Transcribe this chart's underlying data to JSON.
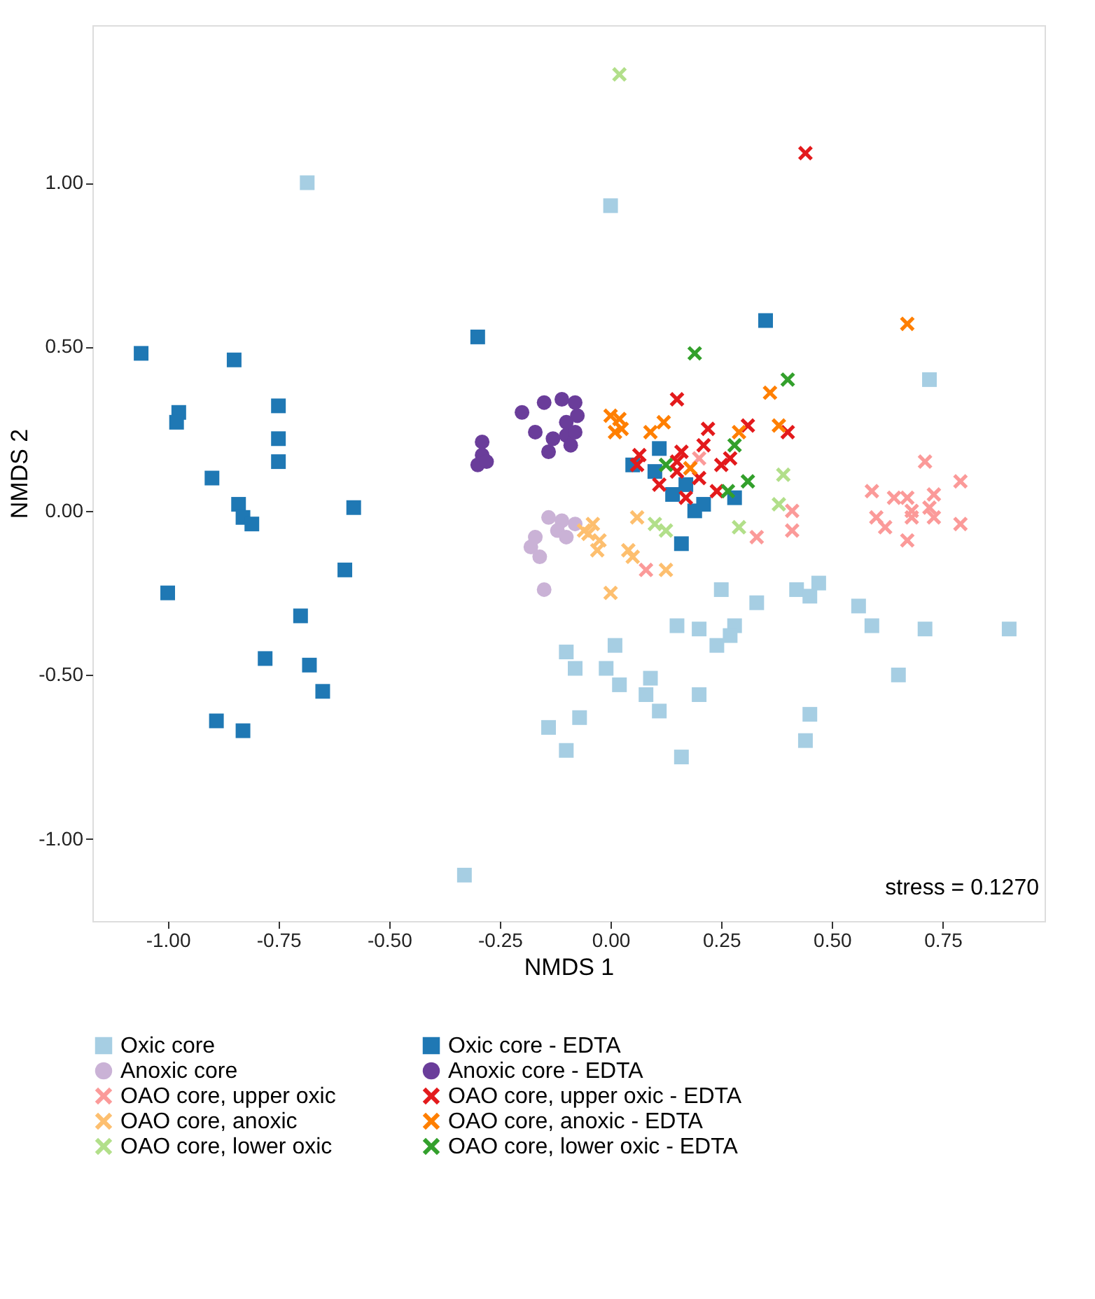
{
  "chart_data": {
    "type": "scatter",
    "xlabel": "NMDS 1",
    "ylabel": "NMDS 2",
    "xlim": [
      -1.17,
      0.98
    ],
    "ylim": [
      -1.25,
      1.48
    ],
    "xticks": [
      {
        "value": -1,
        "label": "-1.00"
      },
      {
        "value": -0.75,
        "label": "-0.75"
      },
      {
        "value": -0.5,
        "label": "-0.50"
      },
      {
        "value": -0.25,
        "label": "-0.25"
      },
      {
        "value": 0,
        "label": "0.00"
      },
      {
        "value": 0.25,
        "label": "0.25"
      },
      {
        "value": 0.5,
        "label": "0.50"
      },
      {
        "value": 0.75,
        "label": "0.75"
      }
    ],
    "yticks": [
      {
        "value": -1,
        "label": "-1.00"
      },
      {
        "value": -0.5,
        "label": "-0.50"
      },
      {
        "value": 0,
        "label": "0.00"
      },
      {
        "value": 0.5,
        "label": "0.50"
      },
      {
        "value": 1,
        "label": "1.00"
      }
    ],
    "grid": false,
    "legend": "bottom",
    "annotations": [
      "stress = 0.1270"
    ],
    "series": [
      {
        "name": "Oxic core",
        "color": "#a6cee3",
        "marker": "square",
        "x": [
          -0.685,
          0.0,
          -0.33,
          0.72,
          0.25,
          0.33,
          0.42,
          0.47,
          0.45,
          0.56,
          0.59,
          0.71,
          0.9,
          0.15,
          0.2,
          0.28,
          0.27,
          0.24,
          -0.1,
          0.01,
          -0.08,
          -0.01,
          0.02,
          0.09,
          0.08,
          0.11,
          0.2,
          0.65,
          0.45,
          0.44,
          -0.07,
          -0.14,
          -0.1,
          0.16
        ],
        "values": [
          1.0,
          0.93,
          -1.11,
          0.4,
          -0.24,
          -0.28,
          -0.24,
          -0.22,
          -0.26,
          -0.29,
          -0.35,
          -0.36,
          -0.36,
          -0.35,
          -0.36,
          -0.35,
          -0.38,
          -0.41,
          -0.43,
          -0.41,
          -0.48,
          -0.48,
          -0.53,
          -0.51,
          -0.56,
          -0.61,
          -0.56,
          -0.5,
          -0.62,
          -0.7,
          -0.63,
          -0.66,
          -0.73,
          -0.75
        ]
      },
      {
        "name": "Oxic core - EDTA",
        "color": "#1f78b4",
        "marker": "square",
        "x": [
          -1.06,
          -0.85,
          -0.975,
          -0.98,
          -0.75,
          -0.75,
          -0.75,
          -0.9,
          -0.84,
          -0.83,
          -0.81,
          -0.58,
          -1.0,
          -0.6,
          -0.7,
          -0.78,
          -0.68,
          -0.65,
          -0.89,
          -0.83,
          -0.3,
          0.35,
          0.11,
          0.05,
          0.1,
          0.14,
          0.17,
          0.19,
          0.21,
          0.28,
          0.16
        ],
        "values": [
          0.48,
          0.46,
          0.3,
          0.27,
          0.32,
          0.22,
          0.15,
          0.1,
          0.02,
          -0.02,
          -0.04,
          0.01,
          -0.25,
          -0.18,
          -0.32,
          -0.45,
          -0.47,
          -0.55,
          -0.64,
          -0.67,
          0.53,
          0.58,
          0.19,
          0.14,
          0.12,
          0.05,
          0.08,
          0.0,
          0.02,
          0.04,
          -0.1
        ]
      },
      {
        "name": "Anoxic core",
        "color": "#cab2d6",
        "marker": "circle",
        "x": [
          -0.14,
          -0.11,
          -0.08,
          -0.17,
          -0.18,
          -0.16,
          -0.12,
          -0.1,
          -0.15
        ],
        "values": [
          -0.02,
          -0.03,
          -0.04,
          -0.08,
          -0.11,
          -0.14,
          -0.06,
          -0.08,
          -0.24
        ]
      },
      {
        "name": "Anoxic core - EDTA",
        "color": "#6a3d9a",
        "marker": "circle",
        "x": [
          -0.29,
          -0.29,
          -0.3,
          -0.28,
          -0.2,
          -0.15,
          -0.11,
          -0.08,
          -0.075,
          -0.17,
          -0.14,
          -0.1,
          -0.09,
          -0.1,
          -0.08,
          -0.13
        ],
        "values": [
          0.21,
          0.17,
          0.14,
          0.15,
          0.3,
          0.33,
          0.34,
          0.33,
          0.29,
          0.24,
          0.18,
          0.23,
          0.2,
          0.27,
          0.24,
          0.22
        ]
      },
      {
        "name": "OAO core, upper oxic",
        "color": "#fb9a99",
        "marker": "cross",
        "x": [
          0.71,
          0.79,
          0.59,
          0.64,
          0.67,
          0.73,
          0.68,
          0.72,
          0.6,
          0.68,
          0.73,
          0.62,
          0.79,
          0.67,
          0.41,
          0.41,
          0.33,
          0.2,
          0.08
        ],
        "values": [
          0.15,
          0.09,
          0.06,
          0.04,
          0.04,
          0.05,
          0.0,
          0.01,
          -0.02,
          -0.02,
          -0.02,
          -0.05,
          -0.04,
          -0.09,
          0.0,
          -0.06,
          -0.08,
          0.16,
          -0.18
        ]
      },
      {
        "name": "OAO core, upper oxic - EDTA",
        "color": "#e31a1c",
        "marker": "cross",
        "x": [
          0.44,
          0.15,
          0.22,
          0.31,
          0.4,
          0.21,
          0.065,
          0.06,
          0.16,
          0.15,
          0.27,
          0.25,
          0.15,
          0.2,
          0.11,
          0.24,
          0.17
        ],
        "values": [
          1.09,
          0.34,
          0.25,
          0.26,
          0.24,
          0.2,
          0.17,
          0.14,
          0.18,
          0.15,
          0.16,
          0.14,
          0.12,
          0.1,
          0.08,
          0.06,
          0.04
        ]
      },
      {
        "name": "OAO core, anoxic",
        "color": "#fdbf6f",
        "marker": "cross",
        "x": [
          -0.04,
          -0.05,
          -0.025,
          -0.03,
          0.06,
          0.04,
          0.05,
          0.125,
          0.0,
          -0.06
        ],
        "values": [
          -0.04,
          -0.07,
          -0.09,
          -0.12,
          -0.02,
          -0.12,
          -0.14,
          -0.18,
          -0.25,
          -0.06
        ]
      },
      {
        "name": "OAO core, anoxic - EDTA",
        "color": "#ff7f00",
        "marker": "cross",
        "x": [
          0.67,
          0.0,
          0.02,
          0.01,
          0.025,
          0.09,
          0.12,
          0.29,
          0.36,
          0.38,
          0.18
        ],
        "values": [
          0.57,
          0.29,
          0.28,
          0.24,
          0.25,
          0.24,
          0.27,
          0.24,
          0.36,
          0.26,
          0.13
        ]
      },
      {
        "name": "OAO core, lower oxic",
        "color": "#b2df8a",
        "marker": "cross",
        "x": [
          0.02,
          0.39,
          0.38,
          0.29,
          0.1,
          0.125
        ],
        "values": [
          1.33,
          0.11,
          0.02,
          -0.05,
          -0.04,
          -0.06
        ]
      },
      {
        "name": "OAO core, lower oxic - EDTA",
        "color": "#33a02c",
        "marker": "cross",
        "x": [
          0.19,
          0.4,
          0.28,
          0.125,
          0.31,
          0.265
        ],
        "values": [
          0.48,
          0.4,
          0.2,
          0.14,
          0.09,
          0.06
        ]
      }
    ]
  }
}
